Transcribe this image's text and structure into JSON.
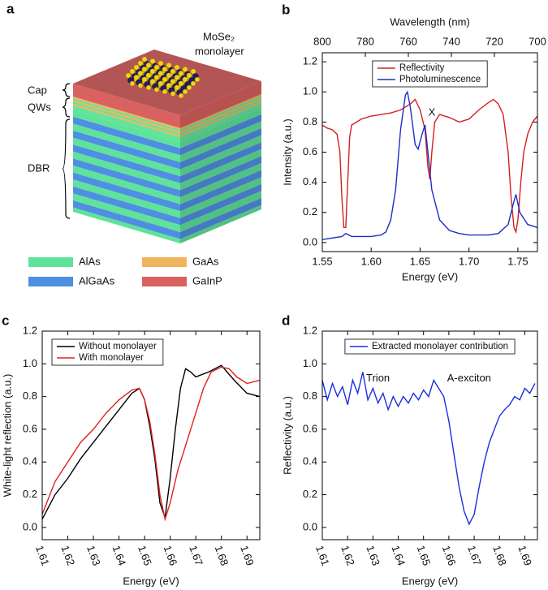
{
  "diagram": {
    "panel": "a",
    "material_label": "MoSe₂",
    "material_sublabel": "monolayer",
    "layers": [
      "Cap",
      "QWs",
      "DBR"
    ],
    "legend": [
      {
        "name": "AlAs",
        "color": "#5fe39a"
      },
      {
        "name": "GaAs",
        "color": "#f0b45a"
      },
      {
        "name": "AlGaAs",
        "color": "#4f8fe3"
      },
      {
        "name": "GaInP",
        "color": "#d9615f"
      }
    ]
  },
  "chart_data": [
    {
      "type": "line",
      "panel": "b",
      "xlabel": "Energy (eV)",
      "ylabel": "Intensity (a.u.)",
      "x2label": "Wavelength (nm)",
      "xlim": [
        1.55,
        1.77
      ],
      "xticks": [
        1.55,
        {
          "value": 1.6,
          "label": "1.60"
        },
        1.65,
        {
          "value": 1.7,
          "label": "1.70"
        },
        1.75
      ],
      "x2lim": [
        800,
        700
      ],
      "x2ticks": [
        800,
        780,
        760,
        740,
        720,
        700
      ],
      "ylim": [
        -0.06,
        1.26
      ],
      "yticks": [
        {
          "value": 0,
          "label": "0.0"
        },
        0.2,
        0.4,
        0.6,
        0.8,
        {
          "value": 1,
          "label": "1.0"
        },
        1.2
      ],
      "legend_loc": "upper center",
      "annotations": [
        {
          "text": "X",
          "x": 1.662,
          "y": 0.86
        }
      ],
      "series": [
        {
          "name": "Reflectivity",
          "color": "#d42020",
          "x": [
            1.55,
            1.555,
            1.56,
            1.565,
            1.568,
            1.57,
            1.572,
            1.574,
            1.576,
            1.578,
            1.58,
            1.585,
            1.59,
            1.6,
            1.61,
            1.62,
            1.63,
            1.64,
            1.645,
            1.65,
            1.655,
            1.658,
            1.66,
            1.662,
            1.665,
            1.67,
            1.68,
            1.69,
            1.7,
            1.71,
            1.72,
            1.725,
            1.73,
            1.735,
            1.74,
            1.743,
            1.746,
            1.748,
            1.75,
            1.753,
            1.756,
            1.76,
            1.765,
            1.77
          ],
          "values": [
            0.78,
            0.76,
            0.75,
            0.72,
            0.6,
            0.3,
            0.1,
            0.1,
            0.4,
            0.7,
            0.78,
            0.8,
            0.82,
            0.84,
            0.85,
            0.86,
            0.88,
            0.92,
            0.95,
            0.88,
            0.75,
            0.5,
            0.42,
            0.6,
            0.8,
            0.85,
            0.83,
            0.8,
            0.82,
            0.88,
            0.93,
            0.95,
            0.92,
            0.85,
            0.6,
            0.3,
            0.1,
            0.07,
            0.15,
            0.4,
            0.6,
            0.72,
            0.8,
            0.84
          ]
        },
        {
          "name": "Photoluminescence",
          "color": "#1a2fc4",
          "x": [
            1.55,
            1.56,
            1.57,
            1.574,
            1.58,
            1.59,
            1.6,
            1.61,
            1.615,
            1.62,
            1.625,
            1.63,
            1.635,
            1.637,
            1.64,
            1.645,
            1.648,
            1.652,
            1.655,
            1.658,
            1.662,
            1.67,
            1.68,
            1.69,
            1.7,
            1.72,
            1.73,
            1.74,
            1.745,
            1.748,
            1.752,
            1.76,
            1.77
          ],
          "values": [
            0.02,
            0.03,
            0.04,
            0.06,
            0.04,
            0.04,
            0.04,
            0.05,
            0.07,
            0.15,
            0.35,
            0.75,
            0.98,
            1.0,
            0.9,
            0.65,
            0.62,
            0.72,
            0.78,
            0.6,
            0.35,
            0.15,
            0.08,
            0.06,
            0.05,
            0.05,
            0.06,
            0.12,
            0.25,
            0.32,
            0.2,
            0.12,
            0.1
          ]
        }
      ]
    },
    {
      "type": "line",
      "panel": "c",
      "xlabel": "Energy (eV)",
      "ylabel": "White-light reflection (a.u.)",
      "xlim": [
        1.61,
        1.695
      ],
      "xticks": [
        1.61,
        1.62,
        1.63,
        1.64,
        1.65,
        1.66,
        1.67,
        1.68,
        1.69
      ],
      "ylim": [
        -0.075,
        1.2
      ],
      "yticks": [
        {
          "value": 0,
          "label": "0.0"
        },
        0.2,
        0.4,
        0.6,
        0.8,
        {
          "value": 1,
          "label": "1.0"
        },
        1.2
      ],
      "legend_loc": "upper left",
      "series": [
        {
          "name": "Without monolayer",
          "color": "#000000",
          "x": [
            1.61,
            1.615,
            1.62,
            1.625,
            1.63,
            1.635,
            1.64,
            1.645,
            1.648,
            1.65,
            1.652,
            1.654,
            1.656,
            1.658,
            1.66,
            1.662,
            1.664,
            1.666,
            1.668,
            1.67,
            1.675,
            1.68,
            1.685,
            1.69,
            1.695
          ],
          "values": [
            0.05,
            0.2,
            0.3,
            0.42,
            0.52,
            0.62,
            0.72,
            0.82,
            0.85,
            0.78,
            0.62,
            0.42,
            0.15,
            0.06,
            0.3,
            0.6,
            0.85,
            0.97,
            0.95,
            0.92,
            0.95,
            0.99,
            0.9,
            0.82,
            0.8
          ]
        },
        {
          "name": "With monolayer",
          "color": "#e02020",
          "x": [
            1.61,
            1.615,
            1.62,
            1.625,
            1.63,
            1.635,
            1.64,
            1.645,
            1.648,
            1.65,
            1.652,
            1.654,
            1.656,
            1.658,
            1.66,
            1.663,
            1.666,
            1.67,
            1.673,
            1.676,
            1.68,
            1.683,
            1.686,
            1.69,
            1.695
          ],
          "values": [
            0.08,
            0.28,
            0.4,
            0.52,
            0.6,
            0.7,
            0.78,
            0.84,
            0.85,
            0.78,
            0.65,
            0.45,
            0.2,
            0.05,
            0.15,
            0.35,
            0.5,
            0.7,
            0.85,
            0.95,
            0.98,
            0.97,
            0.92,
            0.88,
            0.9
          ]
        }
      ]
    },
    {
      "type": "line",
      "panel": "d",
      "xlabel": "Energy (eV)",
      "ylabel": "Reflectivity (a.u.)",
      "xlim": [
        1.61,
        1.695
      ],
      "xticks": [
        1.61,
        1.62,
        1.63,
        1.64,
        1.65,
        1.66,
        1.67,
        1.68,
        1.69
      ],
      "ylim": [
        -0.075,
        1.2
      ],
      "yticks": [
        {
          "value": 0,
          "label": "0.0"
        },
        0.2,
        0.4,
        0.6,
        0.8,
        {
          "value": 1,
          "label": "1.0"
        },
        1.2
      ],
      "legend_loc": "upper center",
      "annotations": [
        {
          "text": "Trion",
          "x": 1.632,
          "y": 0.91
        },
        {
          "text": "A-exciton",
          "x": 1.668,
          "y": 0.91
        }
      ],
      "series": [
        {
          "name": "Extracted monolayer contribution",
          "color": "#1a2fe0",
          "x": [
            1.61,
            1.612,
            1.614,
            1.616,
            1.618,
            1.62,
            1.622,
            1.624,
            1.626,
            1.628,
            1.63,
            1.632,
            1.634,
            1.636,
            1.638,
            1.64,
            1.642,
            1.644,
            1.646,
            1.648,
            1.65,
            1.652,
            1.654,
            1.656,
            1.658,
            1.66,
            1.662,
            1.664,
            1.666,
            1.668,
            1.67,
            1.672,
            1.674,
            1.676,
            1.678,
            1.68,
            1.682,
            1.684,
            1.686,
            1.688,
            1.69,
            1.692,
            1.694
          ],
          "values": [
            0.9,
            0.78,
            0.88,
            0.8,
            0.86,
            0.75,
            0.9,
            0.82,
            0.95,
            0.78,
            0.85,
            0.76,
            0.82,
            0.72,
            0.8,
            0.74,
            0.8,
            0.76,
            0.82,
            0.78,
            0.84,
            0.8,
            0.9,
            0.85,
            0.8,
            0.65,
            0.45,
            0.25,
            0.1,
            0.02,
            0.08,
            0.25,
            0.4,
            0.52,
            0.6,
            0.68,
            0.72,
            0.75,
            0.8,
            0.78,
            0.85,
            0.82,
            0.88
          ]
        }
      ]
    }
  ]
}
